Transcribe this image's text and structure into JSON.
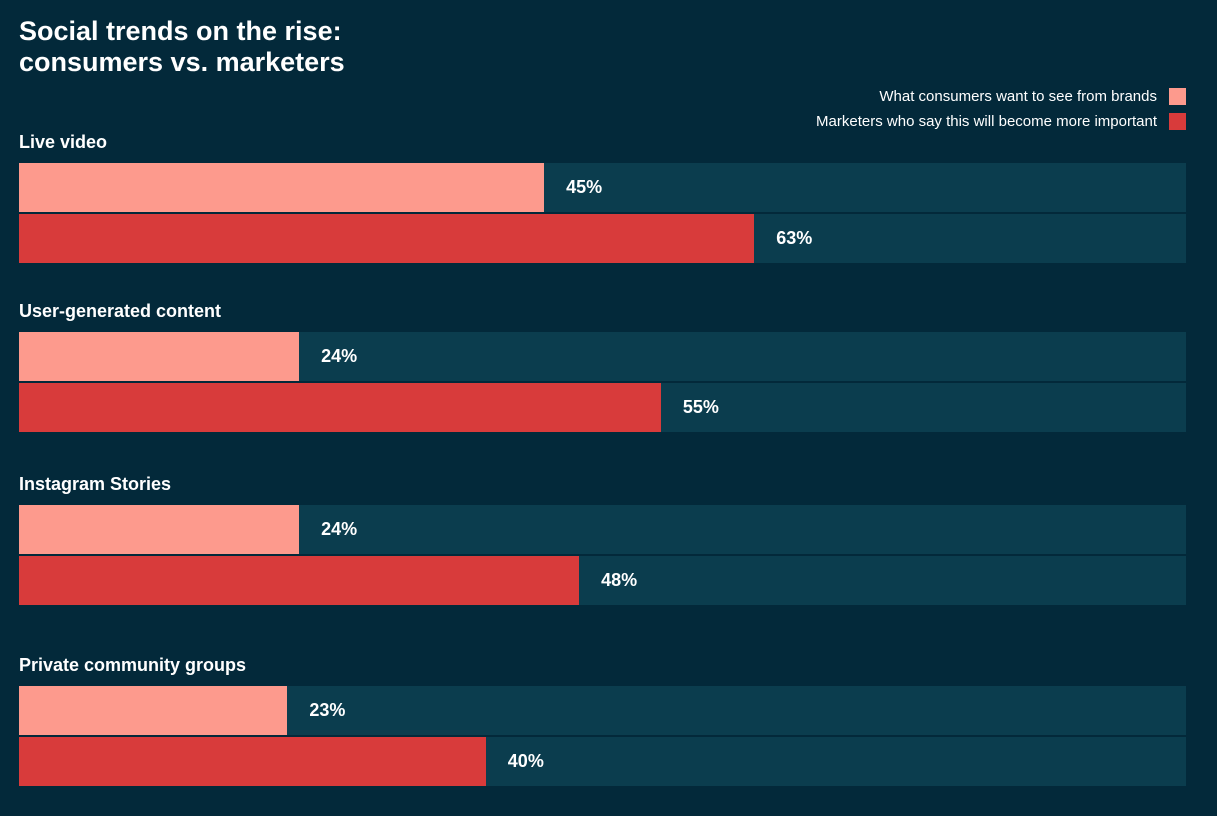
{
  "page": {
    "background_color": "#03293a",
    "track_color": "#0b3d4e",
    "text_color": "#ffffff"
  },
  "header": {
    "title_line1": "Social trends on the rise:",
    "title_line2": "consumers vs. marketers"
  },
  "legend": {
    "items": [
      {
        "label": "What consumers want to see from brands",
        "color": "#fd9a8d"
      },
      {
        "label": "Marketers who say this will become more important",
        "color": "#d83b3b"
      }
    ]
  },
  "chart_data": {
    "type": "bar",
    "orientation": "horizontal",
    "title": "Social trends on the rise: consumers vs. marketers",
    "categories": [
      "Live video",
      "User-generated content",
      "Instagram Stories",
      "Private community groups"
    ],
    "series": [
      {
        "name": "What consumers want to see from brands",
        "color": "#fd9a8d",
        "values": [
          45,
          24,
          24,
          23
        ]
      },
      {
        "name": "Marketers who say this will become more important",
        "color": "#d83b3b",
        "values": [
          63,
          55,
          48,
          40
        ]
      }
    ],
    "value_suffix": "%",
    "xlim": [
      0,
      100
    ],
    "xlabel": "",
    "ylabel": "",
    "grid": false,
    "legend_position": "top-right",
    "bar_track_full_width": true
  }
}
